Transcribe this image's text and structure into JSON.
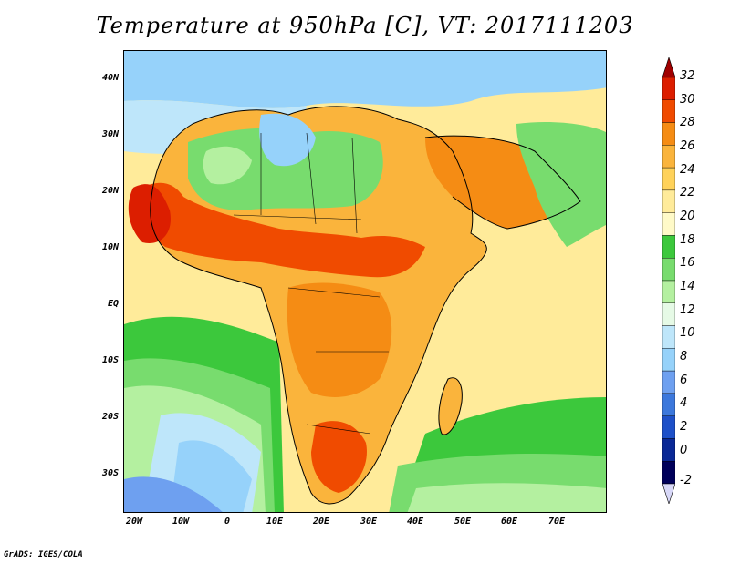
{
  "title": "Temperature at 950hPa [C], VT: 2017111203",
  "credit": "GrADS: IGES/COLA",
  "y_ticks": [
    "40N",
    "30N",
    "20N",
    "10N",
    "EQ",
    "10S",
    "20S",
    "30S"
  ],
  "x_ticks": [
    "20W",
    "10W",
    "0",
    "10E",
    "20E",
    "30E",
    "40E",
    "50E",
    "60E",
    "70E"
  ],
  "map": {
    "lon_range": [
      -22,
      80
    ],
    "lat_range": [
      -37,
      45
    ],
    "region": "Africa, Arabia and western Indian Ocean"
  },
  "colorbar": {
    "labels": [
      "32",
      "30",
      "28",
      "26",
      "24",
      "22",
      "20",
      "18",
      "16",
      "14",
      "12",
      "10",
      "8",
      "6",
      "4",
      "2",
      "0",
      "-2"
    ],
    "colors": [
      "#a00000",
      "#dc1e00",
      "#f04b00",
      "#f58c14",
      "#fab43c",
      "#ffd25a",
      "#ffeb9a",
      "#fffac8",
      "#3cc83c",
      "#78dc6e",
      "#b4f0a0",
      "#e6fae6",
      "#bee6fa",
      "#96d2fa",
      "#6ea0f0",
      "#3c78dc",
      "#1e50c8",
      "#0a2896",
      "#00005a",
      "#d8d8f8"
    ]
  }
}
